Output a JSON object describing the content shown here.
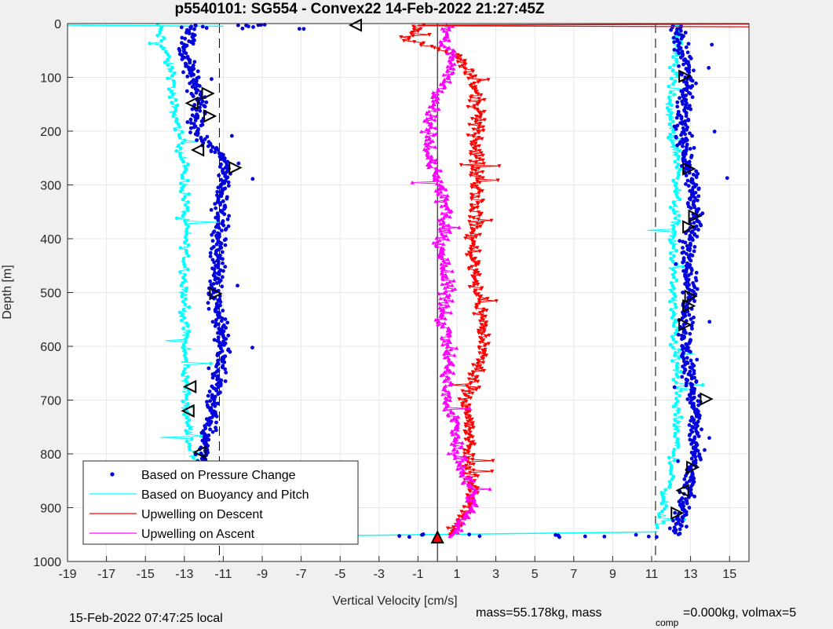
{
  "chart_data": {
    "type": "scatter",
    "title": "p5540101: SG554 - Convex22 14-Feb-2022 21:27:45Z",
    "xlabel": "Vertical Velocity [cm/s]",
    "ylabel": "Depth [m]",
    "xlim": [
      -19,
      16
    ],
    "ylim": [
      0,
      1000
    ],
    "y_reversed": true,
    "grid": true,
    "xticks": [
      -19,
      -17,
      -15,
      -13,
      -11,
      -9,
      -7,
      -5,
      -3,
      -1,
      1,
      3,
      5,
      7,
      9,
      11,
      13,
      15
    ],
    "yticks": [
      0,
      100,
      200,
      300,
      400,
      500,
      600,
      700,
      800,
      900,
      1000
    ],
    "reference_lines": {
      "solid_x": 0,
      "dashed_x": [
        -11.2,
        11.2
      ]
    },
    "legend": {
      "placement": "bottom-left",
      "entries": [
        {
          "label": "Based on Pressure Change",
          "color": "#0000dd",
          "marker": "dot"
        },
        {
          "label": "Based on Buoyancy and Pitch",
          "color": "#00ffff",
          "marker": "line"
        },
        {
          "label": "Upwelling on Descent",
          "color": "#ff0000",
          "marker": "line"
        },
        {
          "label": "Upwelling on Ascent",
          "color": "#ff00ff",
          "marker": "line"
        }
      ]
    },
    "series": [
      {
        "name": "Based on Pressure Change",
        "color": "#0000dd",
        "profiles": [
          {
            "depth": [
              0,
              50,
              100,
              150,
              200,
              260,
              300,
              400,
              500,
              600,
              700,
              800,
              900,
              955
            ],
            "x": [
              -12.5,
              -13,
              -12.6,
              -12.2,
              -12.5,
              -10.8,
              -11.0,
              -11.2,
              -11.4,
              -11.0,
              -11.5,
              -12.0,
              -11.8,
              -12.0
            ]
          },
          {
            "depth": [
              0,
              50,
              100,
              150,
              200,
              260,
              300,
              360,
              400,
              500,
              600,
              700,
              800,
              900,
              950
            ],
            "x": [
              12.3,
              12.6,
              12.9,
              12.6,
              12.6,
              12.9,
              13.1,
              13.3,
              12.9,
              13.0,
              12.7,
              13.2,
              13.2,
              12.6,
              12.3
            ]
          }
        ]
      },
      {
        "name": "Based on Buoyancy and Pitch",
        "color": "#00ffff",
        "profiles": [
          {
            "depth": [
              0,
              50,
              100,
              150,
              200,
              270,
              300,
              400,
              500,
              600,
              700,
              800,
              900,
              950
            ],
            "x": [
              -14.4,
              -14.0,
              -13.6,
              -13.6,
              -13.3,
              -13.0,
              -13.0,
              -12.9,
              -13.0,
              -13.0,
              -12.9,
              -12.6,
              -12.2,
              -12.0
            ]
          },
          {
            "depth": [
              0,
              50,
              100,
              150,
              200,
              270,
              300,
              400,
              500,
              600,
              700,
              800,
              850,
              900,
              940
            ],
            "x": [
              12.4,
              12.3,
              12.1,
              11.9,
              12.0,
              12.4,
              12.3,
              12.1,
              12.1,
              12.2,
              12.3,
              12.2,
              11.9,
              11.6,
              11.3
            ]
          }
        ]
      },
      {
        "name": "Upwelling on Descent",
        "color": "#ff0000",
        "depth": [
          0,
          30,
          60,
          100,
          150,
          200,
          250,
          300,
          350,
          400,
          450,
          500,
          550,
          600,
          650,
          700,
          750,
          800,
          850,
          900,
          955
        ],
        "x": [
          -1.0,
          -1.5,
          1.0,
          1.8,
          2.0,
          2.0,
          2.0,
          2.1,
          2.0,
          1.8,
          1.9,
          2.1,
          2.3,
          2.4,
          2.0,
          1.5,
          1.6,
          1.6,
          1.8,
          1.7,
          0.5
        ]
      },
      {
        "name": "Upwelling on Ascent",
        "color": "#ff00ff",
        "depth": [
          0,
          30,
          60,
          100,
          150,
          200,
          250,
          300,
          350,
          400,
          450,
          500,
          550,
          600,
          650,
          700,
          750,
          800,
          850,
          900,
          955
        ],
        "x": [
          0.5,
          0.3,
          0.8,
          0.5,
          -0.2,
          -0.3,
          -0.5,
          0.2,
          0.4,
          0.2,
          0.3,
          0.5,
          0.3,
          0.6,
          0.5,
          0.4,
          1.0,
          1.0,
          1.6,
          1.8,
          0.8
        ]
      }
    ],
    "markers": [
      {
        "x": -4.2,
        "y": 3,
        "dir": "left"
      },
      {
        "x": -11.8,
        "y": 130,
        "dir": "right"
      },
      {
        "x": -12.6,
        "y": 148,
        "dir": "left"
      },
      {
        "x": -11.7,
        "y": 172,
        "dir": "right"
      },
      {
        "x": -12.3,
        "y": 235,
        "dir": "left"
      },
      {
        "x": -10.4,
        "y": 268,
        "dir": "right"
      },
      {
        "x": -11.4,
        "y": 502,
        "dir": "right"
      },
      {
        "x": -12.7,
        "y": 675,
        "dir": "left"
      },
      {
        "x": -12.8,
        "y": 720,
        "dir": "left"
      },
      {
        "x": -12.2,
        "y": 797,
        "dir": "left"
      },
      {
        "x": -11.6,
        "y": 837,
        "dir": "right"
      },
      {
        "x": -11.7,
        "y": 950,
        "dir": "right"
      },
      {
        "x": 12.7,
        "y": 98,
        "dir": "right"
      },
      {
        "x": 12.9,
        "y": 270,
        "dir": "right"
      },
      {
        "x": 13.2,
        "y": 358,
        "dir": "right"
      },
      {
        "x": 12.9,
        "y": 378,
        "dir": "right"
      },
      {
        "x": 13.0,
        "y": 507,
        "dir": "right"
      },
      {
        "x": 12.9,
        "y": 525,
        "dir": "right"
      },
      {
        "x": 12.7,
        "y": 560,
        "dir": "right"
      },
      {
        "x": 13.8,
        "y": 698,
        "dir": "right"
      },
      {
        "x": 13.1,
        "y": 825,
        "dir": "right"
      },
      {
        "x": 12.6,
        "y": 868,
        "dir": "left"
      },
      {
        "x": 12.3,
        "y": 910,
        "dir": "right"
      },
      {
        "x": 0,
        "y": 955,
        "dir": "up"
      }
    ]
  },
  "footer": {
    "local_time": "15-Feb-2022 07:47:25 local",
    "mass_text": "mass=55.178kg, mass",
    "comp_sub": "comp",
    "comp_text": "=0.000kg, volmax=5"
  }
}
